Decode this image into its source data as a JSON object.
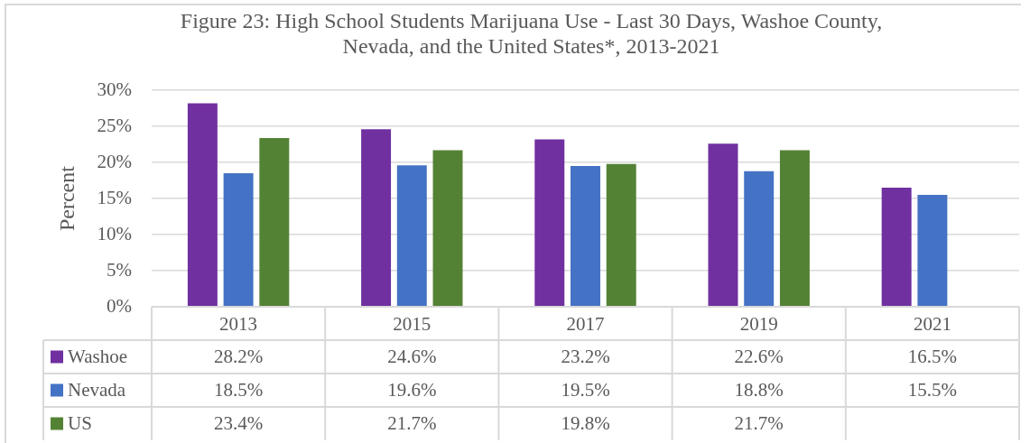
{
  "chart_data": {
    "type": "bar",
    "title": "Figure 23: High School Students Marijuana Use - Last 30 Days, Washoe County, Nevada, and the United States*, 2013-2021",
    "ylabel": "Percent",
    "categories": [
      "2013",
      "2015",
      "2017",
      "2019",
      "2021"
    ],
    "series": [
      {
        "name": "Washoe",
        "color": "#7030a0",
        "values": [
          28.2,
          24.6,
          23.2,
          22.6,
          16.5
        ],
        "value_labels": [
          "28.2%",
          "24.6%",
          "23.2%",
          "22.6%",
          "16.5%"
        ]
      },
      {
        "name": "Nevada",
        "color": "#4472c4",
        "values": [
          18.5,
          19.6,
          19.5,
          18.8,
          15.5
        ],
        "value_labels": [
          "18.5%",
          "19.6%",
          "19.5%",
          "18.8%",
          "15.5%"
        ]
      },
      {
        "name": "US",
        "color": "#548235",
        "values": [
          23.4,
          21.7,
          19.8,
          21.7,
          null
        ],
        "value_labels": [
          "23.4%",
          "21.7%",
          "19.8%",
          "21.7%",
          null
        ]
      }
    ],
    "ylim": [
      0,
      30
    ],
    "yticks": [
      {
        "value": 0,
        "label": "0%"
      },
      {
        "value": 5,
        "label": "5%"
      },
      {
        "value": 10,
        "label": "10%"
      },
      {
        "value": 15,
        "label": "15%"
      },
      {
        "value": 20,
        "label": "20%"
      },
      {
        "value": 25,
        "label": "25%"
      },
      {
        "value": 30,
        "label": "30%"
      }
    ],
    "grid": "y",
    "legend": "bottom"
  }
}
